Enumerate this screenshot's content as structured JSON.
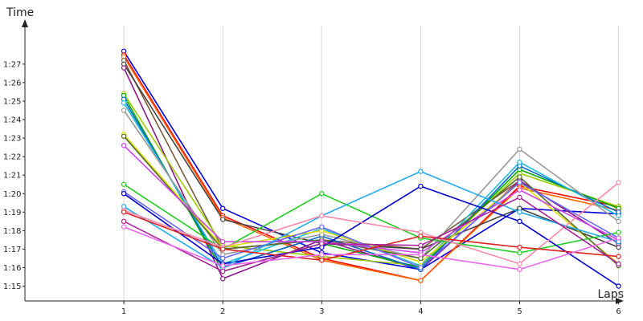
{
  "chart_data": {
    "type": "line",
    "title": "",
    "xlabel": "Laps",
    "ylabel": "Time",
    "x": [
      1,
      2,
      3,
      4,
      5,
      6
    ],
    "xlim": [
      0,
      6
    ],
    "ylim": [
      74.5,
      88.5
    ],
    "yticks": [
      75,
      76,
      77,
      78,
      79,
      80,
      81,
      82,
      83,
      84,
      85,
      86,
      87
    ],
    "ytick_labels": [
      "1:15",
      "1:16",
      "1:17",
      "1:18",
      "1:19",
      "1:20",
      "1:21",
      "1:22",
      "1:23",
      "1:24",
      "1:25",
      "1:26",
      "1:27"
    ],
    "grid": "vertical",
    "legend": "none",
    "series": [
      {
        "color": "#0000dd",
        "values": [
          87.7,
          79.2,
          76.8,
          75.9,
          79.2,
          78.9
        ]
      },
      {
        "color": "#ff0000",
        "values": [
          87.5,
          78.8,
          76.5,
          75.3,
          80.4,
          79.3
        ]
      },
      {
        "color": "#ff6600",
        "values": [
          87.4,
          78.7,
          76.4,
          75.3,
          80.3,
          79.1
        ]
      },
      {
        "color": "#7a5a3a",
        "values": [
          87.2,
          77.0,
          77.5,
          77.0,
          80.7,
          77.3
        ]
      },
      {
        "color": "#444444",
        "values": [
          87.0,
          78.6,
          77.3,
          77.0,
          79.2,
          77.1
        ]
      },
      {
        "color": "#8b1a8b",
        "values": [
          86.8,
          75.4,
          77.5,
          75.9,
          80.7,
          77.3
        ]
      },
      {
        "color": "#99cc00",
        "values": [
          85.4,
          77.2,
          76.6,
          76.1,
          81.1,
          79.3
        ]
      },
      {
        "color": "#00aa00",
        "values": [
          85.3,
          75.8,
          77.3,
          76.0,
          81.3,
          79.2
        ]
      },
      {
        "color": "#0066cc",
        "values": [
          85.1,
          76.0,
          77.7,
          75.9,
          81.5,
          79.0
        ]
      },
      {
        "color": "#22bbdd",
        "values": [
          84.9,
          76.2,
          78.1,
          76.1,
          81.7,
          78.8
        ]
      },
      {
        "color": "#999999",
        "values": [
          84.5,
          76.7,
          77.8,
          76.5,
          82.4,
          78.5
        ]
      },
      {
        "color": "#dddd00",
        "values": [
          83.2,
          77.1,
          78.0,
          76.3,
          80.6,
          76.2
        ]
      },
      {
        "color": "#556b2f",
        "values": [
          83.1,
          77.0,
          77.5,
          76.5,
          80.9,
          76.1
        ]
      },
      {
        "color": "#cc44ee",
        "values": [
          82.6,
          77.4,
          77.4,
          76.8,
          80.2,
          77.5
        ]
      },
      {
        "color": "#22cc22",
        "values": [
          80.5,
          77.0,
          80.0,
          77.6,
          76.8,
          77.9
        ]
      },
      {
        "color": "#6666ff",
        "values": [
          80.1,
          76.5,
          78.2,
          76.0,
          80.6,
          77.6
        ]
      },
      {
        "color": "#0000cc",
        "values": [
          80.0,
          76.2,
          77.1,
          80.4,
          78.5,
          75.0
        ]
      },
      {
        "color": "#22aaee",
        "values": [
          79.3,
          76.0,
          78.8,
          81.2,
          79.0,
          77.4
        ]
      },
      {
        "color": "#ff88aa",
        "values": [
          79.1,
          77.1,
          78.8,
          77.9,
          76.2,
          80.6
        ]
      },
      {
        "color": "#dd2222",
        "values": [
          79.0,
          77.0,
          76.4,
          77.7,
          77.1,
          76.6
        ]
      },
      {
        "color": "#aa2299",
        "values": [
          78.5,
          75.8,
          77.3,
          77.2,
          79.8,
          76.2
        ]
      },
      {
        "color": "#ee66ee",
        "values": [
          78.2,
          76.1,
          76.7,
          76.7,
          75.9,
          77.6
        ]
      }
    ]
  }
}
